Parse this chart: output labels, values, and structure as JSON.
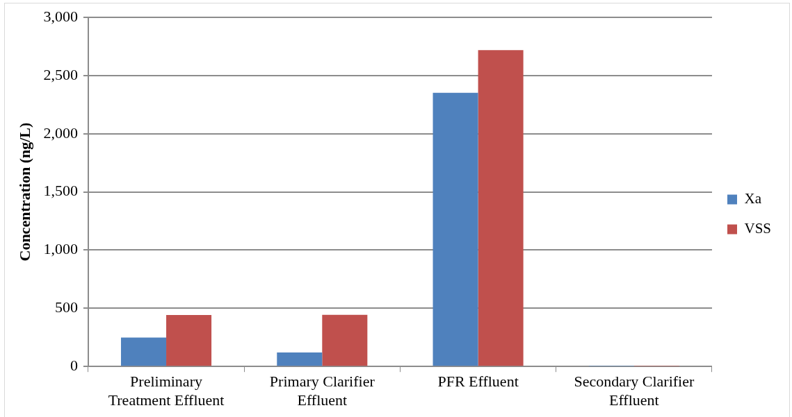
{
  "chart_data": {
    "type": "bar",
    "ylabel": "Concentration (ng/L)",
    "categories": [
      "Preliminary Treatment Effluent",
      "Primary Clarifier Effluent",
      "PFR Effluent",
      "Secondary Clarifier Effluent"
    ],
    "series": [
      {
        "name": "Xa",
        "color": "#4f81bd",
        "values": [
          249,
          120,
          2352,
          3
        ]
      },
      {
        "name": "VSS",
        "color": "#c0504d",
        "values": [
          442,
          444,
          2719,
          3
        ]
      }
    ],
    "ylim": [
      0,
      3000
    ],
    "yticks": [
      0,
      500,
      {
        "value": 1000,
        "label": "1,000"
      },
      {
        "value": 1500,
        "label": "1,500"
      },
      {
        "value": 2000,
        "label": "2,000"
      },
      {
        "value": 2500,
        "label": "2,500"
      },
      {
        "value": 3000,
        "label": "3,000"
      }
    ],
    "grid": "y",
    "legend": "right"
  }
}
